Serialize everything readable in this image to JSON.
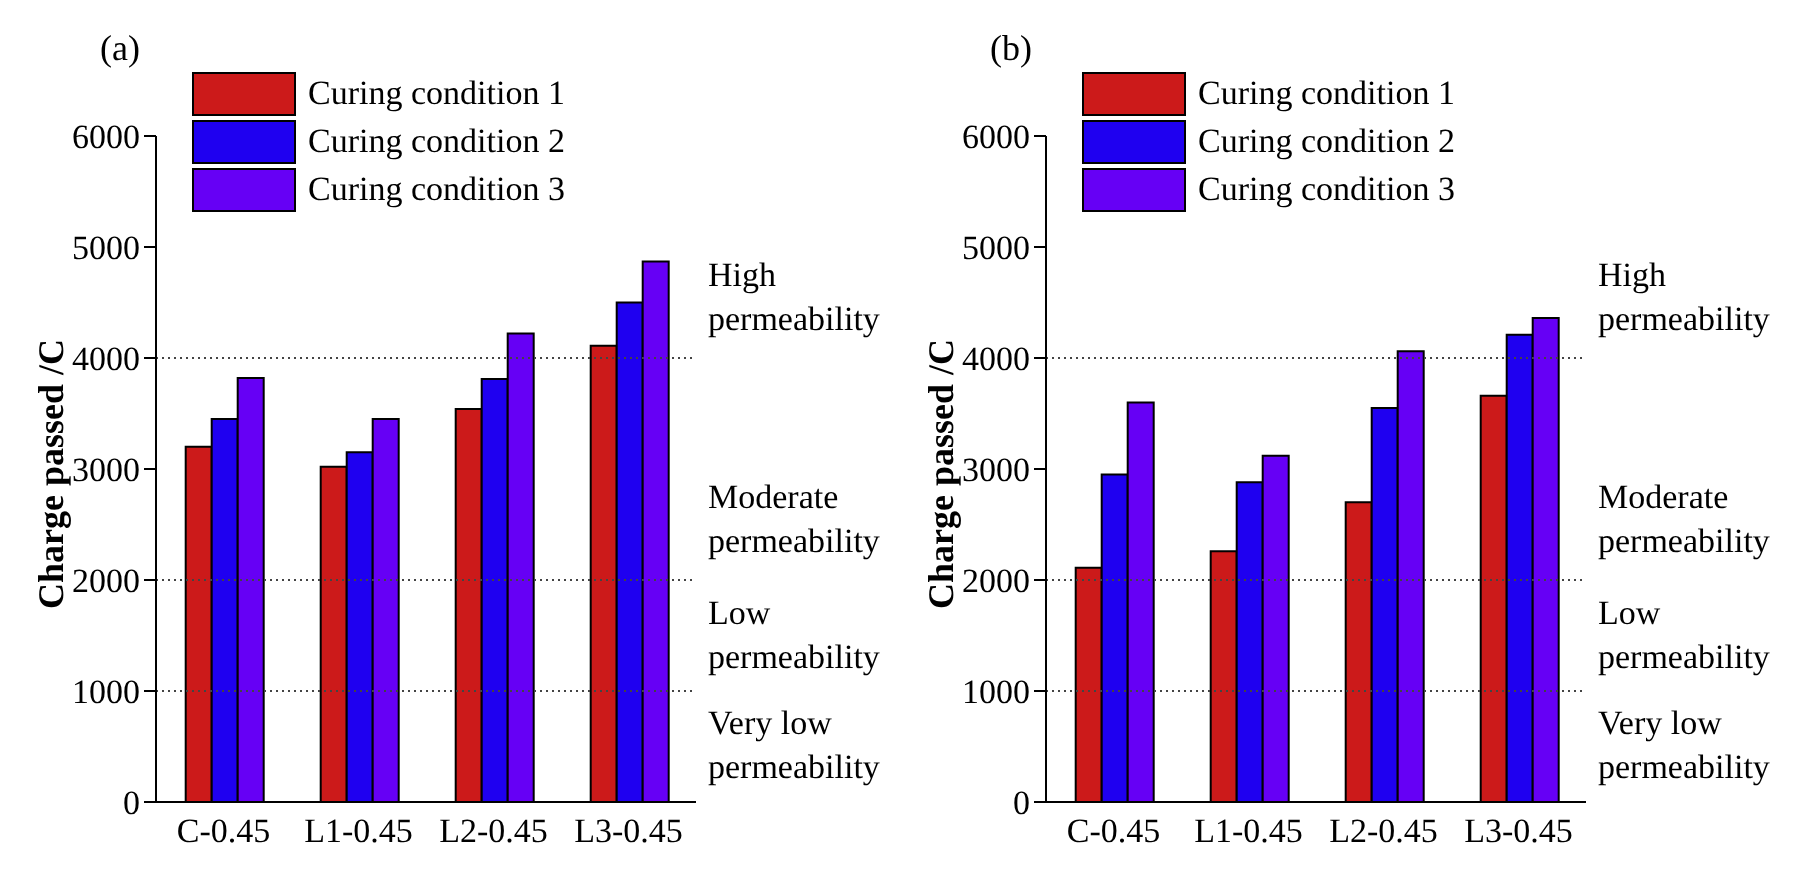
{
  "chart_data": [
    {
      "type": "bar",
      "title": "(a)",
      "ylabel": "Charge passed /C",
      "categories": [
        "C-0.45",
        "L1-0.45",
        "L2-0.45",
        "L3-0.45"
      ],
      "series": [
        {
          "name": "Curing condition 1",
          "color": "#cc1a1a",
          "values": [
            3200,
            3020,
            3540,
            4110
          ]
        },
        {
          "name": "Curing condition 2",
          "color": "#1f00f0",
          "values": [
            3450,
            3150,
            3810,
            4500
          ]
        },
        {
          "name": "Curing condition 3",
          "color": "#6600f5",
          "values": [
            3820,
            3450,
            4220,
            4870
          ]
        }
      ],
      "ylim": [
        0,
        6000
      ],
      "yticks": [
        0,
        1000,
        2000,
        3000,
        4000,
        5000,
        6000
      ],
      "grid": false,
      "legend": "top left",
      "ref_lines": [
        {
          "axis": "y",
          "value": 1000,
          "line_style": "dotted"
        },
        {
          "axis": "y",
          "value": 2000,
          "line_style": "dotted"
        },
        {
          "axis": "y",
          "value": 4000,
          "line_style": "dotted"
        }
      ],
      "annotations": [
        "High permeability",
        "Moderate permeability",
        "Low permeability",
        "Very low permeability"
      ]
    },
    {
      "type": "bar",
      "title": "(b)",
      "ylabel": "Charge passed /C",
      "categories": [
        "C-0.45",
        "L1-0.45",
        "L2-0.45",
        "L3-0.45"
      ],
      "series": [
        {
          "name": "Curing condition 1",
          "color": "#cc1a1a",
          "values": [
            2110,
            2260,
            2700,
            3660
          ]
        },
        {
          "name": "Curing condition 2",
          "color": "#1f00f0",
          "values": [
            2950,
            2880,
            3550,
            4210
          ]
        },
        {
          "name": "Curing condition 3",
          "color": "#6600f5",
          "values": [
            3600,
            3120,
            4060,
            4360
          ]
        }
      ],
      "ylim": [
        0,
        6000
      ],
      "yticks": [
        0,
        1000,
        2000,
        3000,
        4000,
        5000,
        6000
      ],
      "grid": false,
      "legend": "top left",
      "ref_lines": [
        {
          "axis": "y",
          "value": 1000,
          "line_style": "dotted"
        },
        {
          "axis": "y",
          "value": 2000,
          "line_style": "dotted"
        },
        {
          "axis": "y",
          "value": 4000,
          "line_style": "dotted"
        }
      ],
      "annotations": [
        "High permeability",
        "Moderate permeability",
        "Low permeability",
        "Very low permeability"
      ]
    }
  ]
}
